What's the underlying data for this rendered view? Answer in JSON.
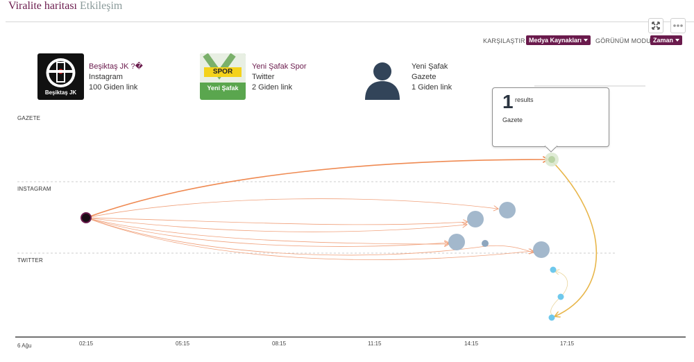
{
  "tabs": [
    {
      "label": "Viralite haritası",
      "active": true
    },
    {
      "label": "Etkileşim",
      "active": false
    }
  ],
  "toolbar": {
    "compare_label": "KARŞILAŞTIR",
    "compare_value": "Medya Kaynakları",
    "view_mode_label": "GÖRÜNÜM MODU",
    "view_mode_value": "Zaman",
    "expand_icon": "expand-icon",
    "more_icon": "more-dots-icon"
  },
  "sources": [
    {
      "name": "Beşiktaş JK ?�",
      "platform": "Instagram",
      "links": "100 Giden link",
      "avatar": "besiktas-logo",
      "avatar_caption": "Beşiktaş JK"
    },
    {
      "name": "Yeni Şafak Spor",
      "platform": "Twitter",
      "links": "2 Giden link",
      "avatar": "yeni-safak-spor-logo",
      "avatar_badge": "SPOR",
      "avatar_caption": "Yeni Şafak"
    },
    {
      "name": "Yeni Şafak",
      "platform": "Gazete",
      "links": "1 Giden link",
      "avatar": "person-placeholder-icon"
    }
  ],
  "bands": [
    "GAZETE",
    "INSTAGRAM",
    "TWITTER"
  ],
  "time_axis": {
    "date_label": "6 Ağu",
    "ticks": [
      "02:15",
      "05:15",
      "08:15",
      "11:15",
      "14:15",
      "17:15"
    ]
  },
  "popup": {
    "count": "1",
    "unit": "results",
    "label": "Gazete"
  },
  "colors": {
    "accent": "#6a1a4c",
    "edge": "#f0a07a",
    "edge_strong": "#ef8a52",
    "edge_gold": "#e8b64a",
    "node_instagram": "#a3b8cc",
    "node_twitter": "#6ec8ec",
    "node_gazete": "#c3dcb0"
  }
}
